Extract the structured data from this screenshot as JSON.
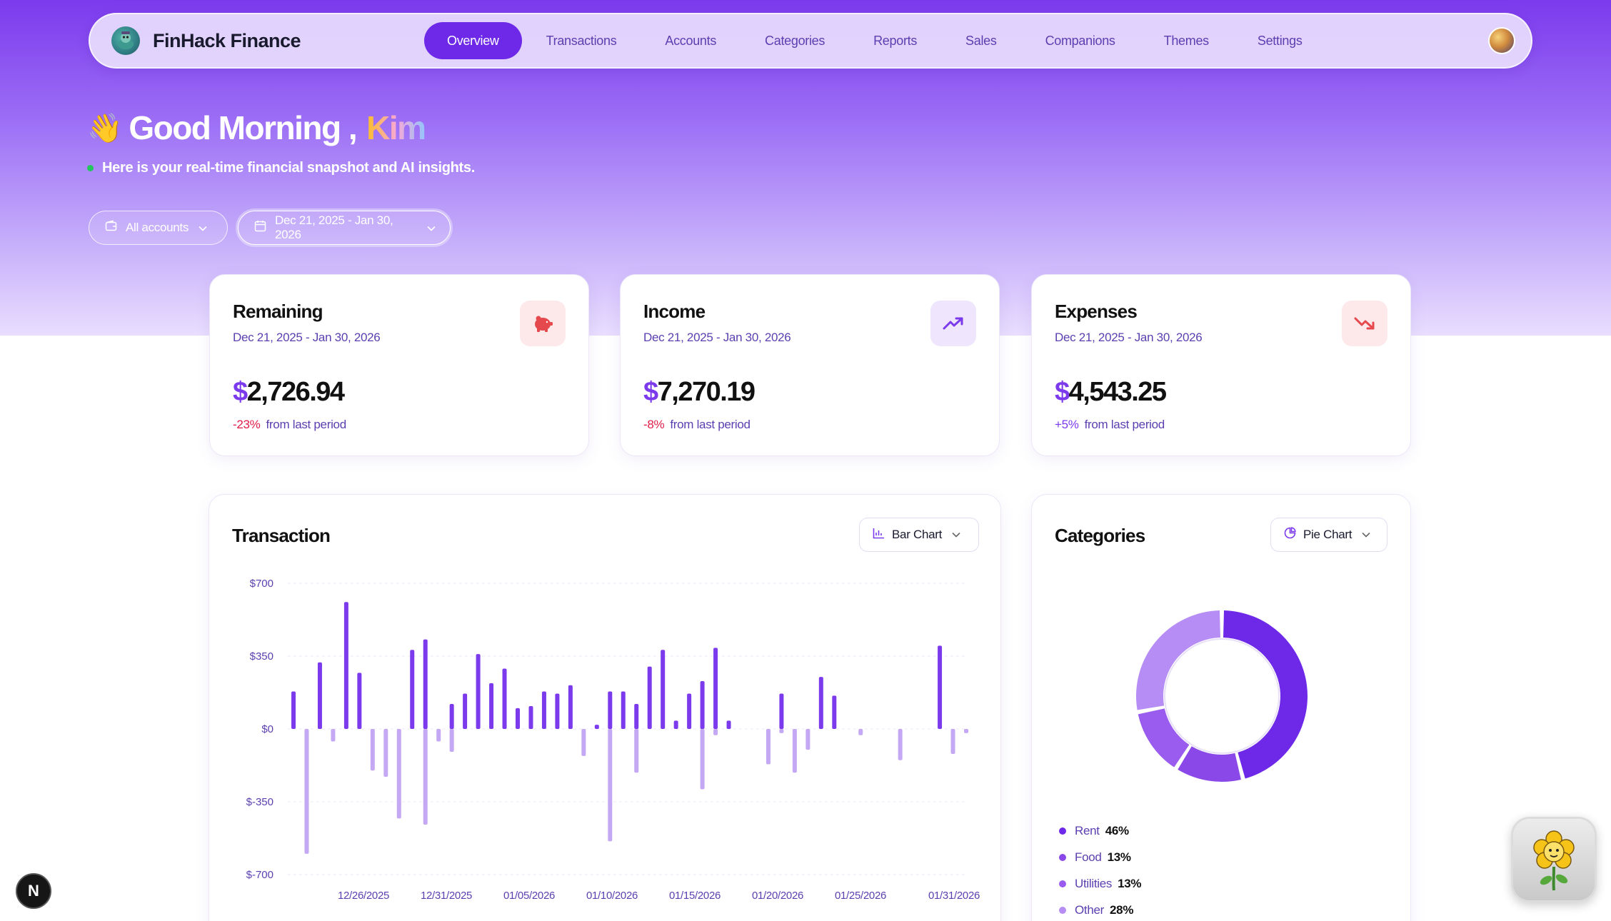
{
  "nav": {
    "brand": "FinHack Finance",
    "items": [
      {
        "label": "Overview",
        "active": true
      },
      {
        "label": "Transactions"
      },
      {
        "label": "Accounts"
      },
      {
        "label": "Categories"
      },
      {
        "label": "Reports"
      },
      {
        "label": "Sales"
      },
      {
        "label": "Companions"
      },
      {
        "label": "Themes"
      },
      {
        "label": "Settings"
      }
    ]
  },
  "greeting": {
    "emoji": "👋",
    "text": "Good Morning ,",
    "name": "Kim",
    "subtitle": "Here is your real-time financial snapshot and AI insights."
  },
  "filters": {
    "accounts": "All accounts",
    "date_range": "Dec 21, 2025 - Jan 30, 2026"
  },
  "stats": [
    {
      "title": "Remaining",
      "date": "Dec 21, 2025 - Jan 30, 2026",
      "currency": "$",
      "value": "2,726.94",
      "change": "-23%",
      "change_text": "from last period",
      "icon": "piggy-bank-icon",
      "icon_color": "#e5484d"
    },
    {
      "title": "Income",
      "date": "Dec 21, 2025 - Jan 30, 2026",
      "currency": "$",
      "value": "7,270.19",
      "change": "-8%",
      "change_text": "from last period",
      "icon": "trending-up-icon",
      "icon_color": "#7c3aed"
    },
    {
      "title": "Expenses",
      "date": "Dec 21, 2025 - Jan 30, 2026",
      "currency": "$",
      "value": "4,543.25",
      "change": "+5%",
      "change_text": "from last period",
      "icon": "trending-down-icon",
      "icon_color": "#e5484d"
    }
  ],
  "transaction": {
    "title": "Transaction",
    "chart_type_label": "Bar Chart"
  },
  "categories": {
    "title": "Categories",
    "chart_type_label": "Pie Chart"
  },
  "chart_data": [
    {
      "type": "bar",
      "title": "Transaction",
      "ylim": [
        -700,
        700
      ],
      "y_ticks": [
        700,
        350,
        0,
        -350,
        -700
      ],
      "y_tick_labels": [
        "$700",
        "$350",
        "$0",
        "$-350",
        "$-700"
      ],
      "x_tick_labels": [
        "12/26/2025",
        "12/31/2025",
        "01/05/2026",
        "01/10/2026",
        "01/15/2026",
        "01/20/2026",
        "01/25/2026",
        "01/31/2026"
      ],
      "grid": true,
      "colors": {
        "income": "#7c3aed",
        "expense": "#c4a8f3"
      },
      "series": [
        {
          "name": "income",
          "values": [
            180,
            0,
            320,
            0,
            610,
            270,
            0,
            0,
            0,
            380,
            430,
            0,
            120,
            170,
            360,
            220,
            290,
            100,
            110,
            180,
            170,
            210,
            0,
            20,
            180,
            180,
            120,
            300,
            380,
            40,
            170,
            230,
            390,
            40,
            0,
            0,
            0,
            170,
            0,
            0,
            250,
            160,
            0,
            0,
            0,
            0,
            0,
            0,
            0,
            400,
            0,
            0
          ]
        },
        {
          "name": "expense",
          "values": [
            0,
            -600,
            0,
            -60,
            0,
            0,
            -200,
            -230,
            -430,
            0,
            -460,
            -60,
            -110,
            0,
            0,
            0,
            0,
            0,
            0,
            0,
            0,
            0,
            -130,
            0,
            -540,
            0,
            -210,
            0,
            0,
            0,
            0,
            -290,
            -30,
            0,
            0,
            0,
            -170,
            -20,
            -210,
            -100,
            0,
            0,
            0,
            -30,
            0,
            0,
            -150,
            0,
            0,
            0,
            -120,
            -20
          ]
        }
      ]
    },
    {
      "type": "pie",
      "title": "Categories",
      "categories": [
        "Rent",
        "Food",
        "Utilities",
        "Other"
      ],
      "values": [
        46,
        13,
        13,
        28
      ],
      "labels": [
        "46%",
        "13%",
        "13%",
        "28%"
      ],
      "colors": [
        "#6d28e8",
        "#8b48e8",
        "#9a5cef",
        "#b68df5"
      ]
    }
  ],
  "colors": {
    "accent": "#7c3aed",
    "nav_active": "#6d28e8",
    "negative": "#e11d48"
  }
}
